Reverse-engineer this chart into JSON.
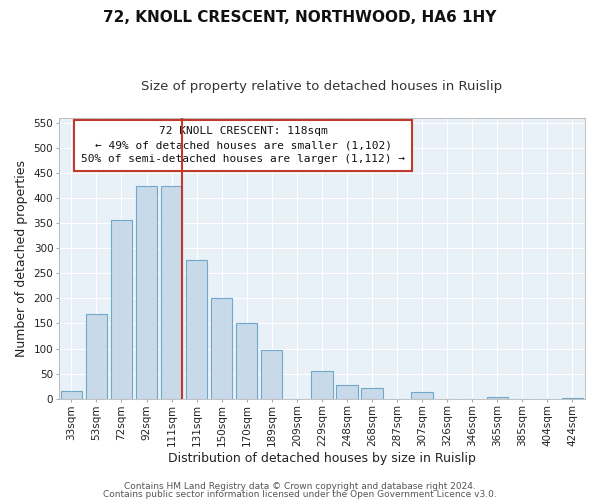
{
  "title": "72, KNOLL CRESCENT, NORTHWOOD, HA6 1HY",
  "subtitle": "Size of property relative to detached houses in Ruislip",
  "xlabel": "Distribution of detached houses by size in Ruislip",
  "ylabel": "Number of detached properties",
  "bar_labels": [
    "33sqm",
    "53sqm",
    "72sqm",
    "92sqm",
    "111sqm",
    "131sqm",
    "150sqm",
    "170sqm",
    "189sqm",
    "209sqm",
    "229sqm",
    "248sqm",
    "268sqm",
    "287sqm",
    "307sqm",
    "326sqm",
    "346sqm",
    "365sqm",
    "385sqm",
    "404sqm",
    "424sqm"
  ],
  "bar_values": [
    15,
    168,
    357,
    425,
    425,
    277,
    200,
    150,
    97,
    0,
    55,
    28,
    22,
    0,
    14,
    0,
    0,
    3,
    0,
    0,
    2
  ],
  "bar_fill_color": "#c8daea",
  "bar_edge_color": "#6fa8c8",
  "highlight_color": "#c0392b",
  "highlight_line_index": 4,
  "annotation_title": "72 KNOLL CRESCENT: 118sqm",
  "annotation_line1": "← 49% of detached houses are smaller (1,102)",
  "annotation_line2": "50% of semi-detached houses are larger (1,112) →",
  "annotation_box_facecolor": "#ffffff",
  "annotation_box_edgecolor": "#c0392b",
  "ylim": [
    0,
    560
  ],
  "yticks": [
    0,
    50,
    100,
    150,
    200,
    250,
    300,
    350,
    400,
    450,
    500,
    550
  ],
  "footer_line1": "Contains HM Land Registry data © Crown copyright and database right 2024.",
  "footer_line2": "Contains public sector information licensed under the Open Government Licence v3.0.",
  "background_color": "#ffffff",
  "plot_bg_color": "#e8f0f8",
  "grid_color": "#ffffff",
  "title_fontsize": 11,
  "subtitle_fontsize": 9.5,
  "axis_label_fontsize": 9,
  "tick_fontsize": 7.5,
  "annotation_fontsize": 8,
  "footer_fontsize": 6.5
}
